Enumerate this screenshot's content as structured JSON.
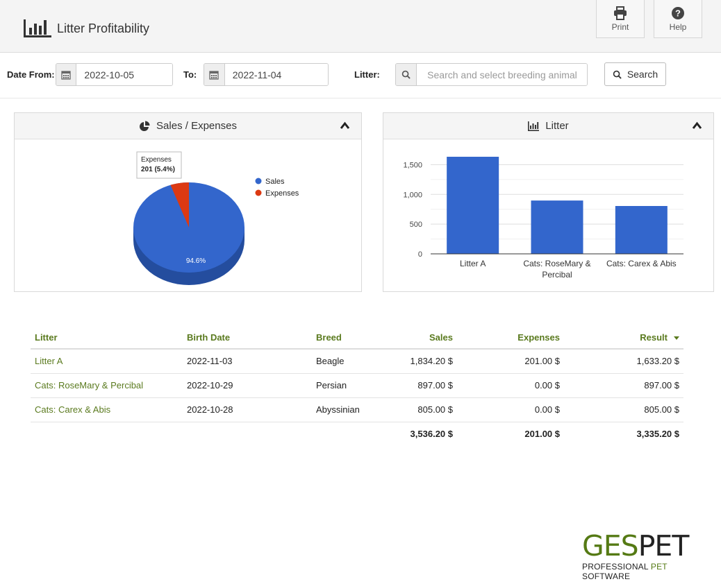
{
  "header": {
    "title": "Litter Profitability",
    "print_label": "Print",
    "help_label": "Help"
  },
  "filters": {
    "date_from_label": "Date From:",
    "date_from_value": "2022-10-05",
    "to_label": "To:",
    "to_value": "2022-11-04",
    "litter_label": "Litter:",
    "litter_placeholder": "Search and select breeding animal",
    "search_label": "Search"
  },
  "panels": {
    "left_title": "Sales / Expenses",
    "right_title": "Litter"
  },
  "chart_data": [
    {
      "type": "pie",
      "title": "Sales / Expenses",
      "categories": [
        "Sales",
        "Expenses"
      ],
      "values": [
        3536.2,
        201
      ],
      "colors": [
        "#3366cc",
        "#dc3912"
      ],
      "slice_labels": [
        "94.6%",
        ""
      ],
      "tooltip": {
        "title": "Expenses",
        "value": "201 (5.4%)"
      },
      "legend": "right"
    },
    {
      "type": "bar",
      "title": "Litter",
      "categories": [
        "Litter A",
        "Cats: RoseMary & Percibal",
        "Cats: Carex & Abis"
      ],
      "category_lines": [
        [
          "Litter A"
        ],
        [
          "Cats: RoseMary &",
          "Percibal"
        ],
        [
          "Cats: Carex & Abis"
        ]
      ],
      "values": [
        1633.2,
        897,
        805
      ],
      "color": "#3366cc",
      "ylim": [
        0,
        1750
      ],
      "yticks": [
        0,
        500,
        1000,
        1500
      ],
      "ytick_labels": [
        "0",
        "500",
        "1,000",
        "1,500"
      ],
      "grid": true
    }
  ],
  "table": {
    "headers": [
      "Litter",
      "Birth Date",
      "Breed",
      "Sales",
      "Expenses",
      "Result"
    ],
    "rows": [
      [
        "Litter A",
        "2022-11-03",
        "Beagle",
        "1,834.20 $",
        "201.00 $",
        "1,633.20 $"
      ],
      [
        "Cats: RoseMary & Percibal",
        "2022-10-29",
        "Persian",
        "897.00 $",
        "0.00 $",
        "897.00 $"
      ],
      [
        "Cats: Carex & Abis",
        "2022-10-28",
        "Abyssinian",
        "805.00 $",
        "0.00 $",
        "805.00 $"
      ]
    ],
    "totals": [
      "3,536.20 $",
      "201.00 $",
      "3,335.20 $"
    ]
  },
  "brand": {
    "name_part1": "GES",
    "name_part2": "PET",
    "tag_part1": "PROFESSIONAL ",
    "tag_part2": "PET",
    "tag_part3": " SOFTWARE"
  },
  "colors": {
    "accent_green": "#5a7a1e",
    "series_blue": "#3366cc",
    "series_red": "#dc3912"
  }
}
